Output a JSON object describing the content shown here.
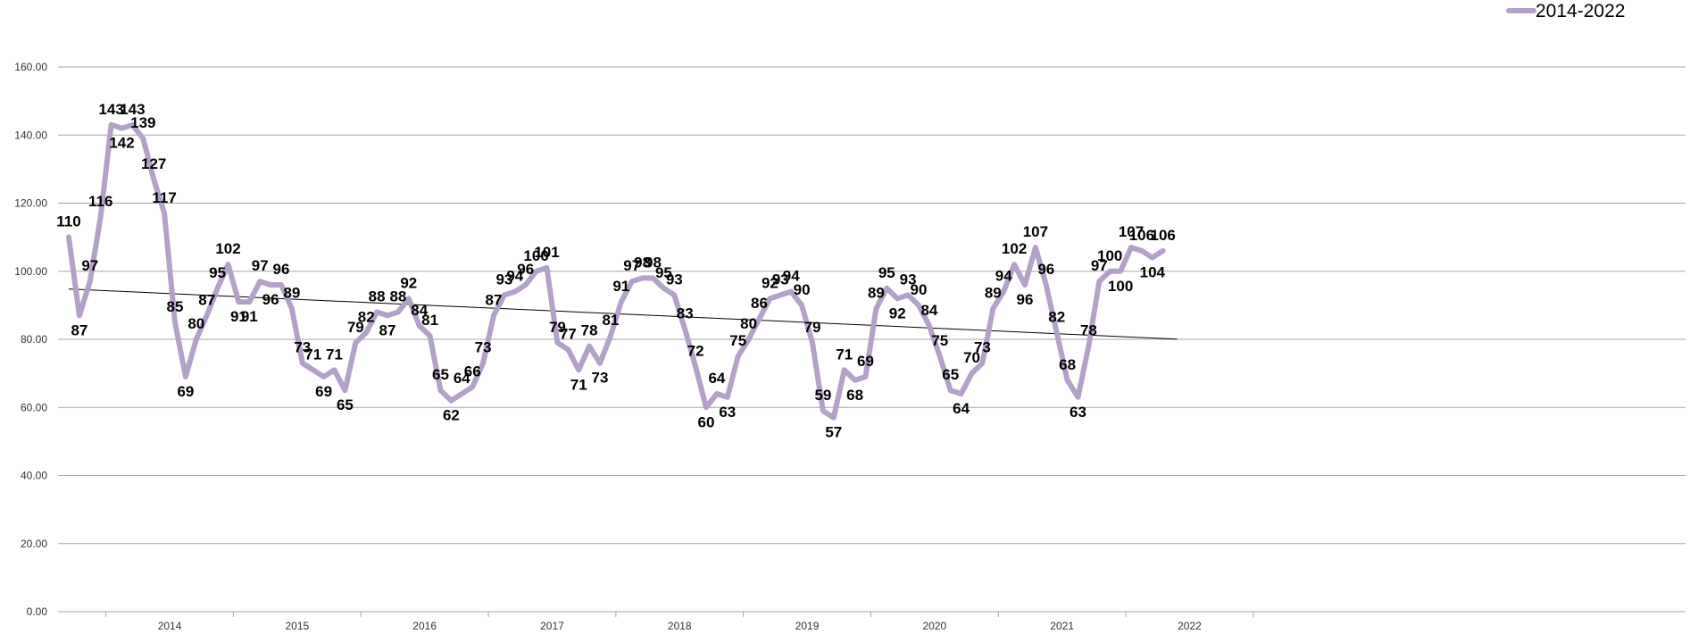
{
  "chart_data": {
    "type": "line",
    "title": "",
    "xlabel": "",
    "ylabel": "",
    "ylim": [
      0,
      160
    ],
    "y_ticks": [
      "0.00",
      "20.00",
      "40.00",
      "60.00",
      "80.00",
      "100.00",
      "120.00",
      "140.00",
      "160.00"
    ],
    "x_tick_labels": [
      "2014",
      "2015",
      "2016",
      "2017",
      "2018",
      "2019",
      "2020",
      "2021",
      "2022"
    ],
    "grid": "horizontal",
    "legend_position": "top-right",
    "trendline": "linear",
    "colors": {
      "series": "#b3a2c7",
      "grid": "#a6a6a6",
      "trend": "#000000"
    },
    "series": [
      {
        "name": "2014-2022",
        "values": [
          110,
          87,
          97,
          116,
          143,
          142,
          143,
          139,
          127,
          117,
          85,
          69,
          80,
          87,
          95,
          102,
          91,
          91,
          97,
          96,
          96,
          89,
          73,
          71,
          69,
          71,
          65,
          79,
          82,
          88,
          87,
          88,
          92,
          84,
          81,
          65,
          62,
          64,
          66,
          73,
          87,
          93,
          94,
          96,
          100,
          101,
          79,
          77,
          71,
          78,
          73,
          81,
          91,
          97,
          98,
          98,
          95,
          93,
          83,
          72,
          60,
          64,
          63,
          75,
          80,
          86,
          92,
          93,
          94,
          90,
          79,
          59,
          57,
          71,
          68,
          69,
          89,
          95,
          92,
          93,
          90,
          84,
          75,
          65,
          64,
          70,
          73,
          89,
          94,
          102,
          96,
          107,
          96,
          82,
          68,
          63,
          78,
          97,
          100,
          100,
          107,
          106,
          104,
          106
        ],
        "labels": [
          "110",
          "87",
          "97",
          "116",
          "143",
          "142",
          "143",
          "139",
          "127",
          "117",
          "85",
          "69",
          "80",
          "87",
          "95",
          "102",
          "91",
          "91",
          "97",
          "96",
          "96",
          "89",
          "73",
          "71",
          "69",
          "71",
          "65",
          "79",
          "82",
          "88",
          "87",
          "88",
          "92",
          "84",
          "81",
          "65",
          "62",
          "64",
          "66",
          "73",
          "87",
          "93",
          "94",
          "96",
          "100",
          "101",
          "79",
          "77",
          "71",
          "78",
          "73",
          "81",
          "91",
          "97",
          "98",
          "98",
          "95",
          "93",
          "83",
          "72",
          "60",
          "64",
          "63",
          "75",
          "80",
          "86",
          "92",
          "93",
          "94",
          "90",
          "79",
          "59",
          "57",
          "71",
          "68",
          "69",
          "89",
          "95",
          "92",
          "93",
          "90",
          "84",
          "75",
          "65",
          "64",
          "70",
          "73",
          "89",
          "94",
          "102",
          "96",
          "107",
          "96",
          "82",
          "68",
          "63",
          "78",
          "97",
          "100",
          "100",
          "107",
          "106",
          "104",
          "106"
        ]
      }
    ]
  }
}
